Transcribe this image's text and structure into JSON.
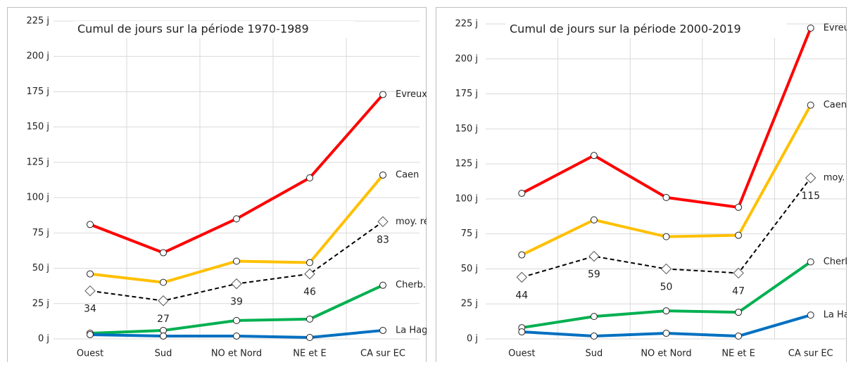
{
  "chart_data": [
    {
      "type": "line",
      "title": "Cumul de jours sur la période 1970-1989",
      "categories": [
        "Ouest",
        "Sud",
        "NO et Nord",
        "NE et E",
        "CA sur EC"
      ],
      "ylim": [
        0,
        225
      ],
      "yticks": [
        {
          "value": 0,
          "label": "0 j"
        },
        {
          "value": 25,
          "label": "25 j"
        },
        {
          "value": 50,
          "label": "50 j"
        },
        {
          "value": 75,
          "label": "75 j"
        },
        {
          "value": 100,
          "label": "100 j"
        },
        {
          "value": 125,
          "label": "125 j"
        },
        {
          "value": 150,
          "label": "150 j"
        },
        {
          "value": 175,
          "label": "175 j"
        },
        {
          "value": 200,
          "label": "200 j"
        },
        {
          "value": 225,
          "label": "225 j"
        }
      ],
      "grid": true,
      "series": [
        {
          "name": "Evreux",
          "color": "#ff0000",
          "values": [
            81,
            61,
            85,
            114,
            173
          ],
          "marker": "circle"
        },
        {
          "name": "Caen",
          "color": "#ffc000",
          "values": [
            46,
            40,
            55,
            54,
            116
          ],
          "marker": "circle"
        },
        {
          "name": "moy. régio.",
          "color": "#000000",
          "values": [
            34,
            27,
            39,
            46,
            83
          ],
          "marker": "diamond",
          "dashed": true,
          "labels": true
        },
        {
          "name": "Cherb.",
          "color": "#00b050",
          "values": [
            4,
            6,
            13,
            14,
            38
          ],
          "marker": "circle"
        },
        {
          "name": "La Hag.",
          "color": "#0070c0",
          "values": [
            3,
            2,
            2,
            1,
            6
          ],
          "marker": "circle"
        }
      ]
    },
    {
      "type": "line",
      "title": "Cumul de jours sur la période 2000-2019",
      "categories": [
        "Ouest",
        "Sud",
        "NO et Nord",
        "NE et E",
        "CA sur EC"
      ],
      "ylim": [
        0,
        225
      ],
      "yticks": [
        {
          "value": 0,
          "label": "0 j"
        },
        {
          "value": 25,
          "label": "25 j"
        },
        {
          "value": 50,
          "label": "50 j"
        },
        {
          "value": 75,
          "label": "75 j"
        },
        {
          "value": 100,
          "label": "100 j"
        },
        {
          "value": 125,
          "label": "125 j"
        },
        {
          "value": 150,
          "label": "150 j"
        },
        {
          "value": 175,
          "label": "175 j"
        },
        {
          "value": 200,
          "label": "200 j"
        },
        {
          "value": 225,
          "label": "225 j"
        }
      ],
      "grid": true,
      "series": [
        {
          "name": "Evreux",
          "color": "#ff0000",
          "values": [
            104,
            131,
            101,
            94,
            222
          ],
          "marker": "circle"
        },
        {
          "name": "Caen",
          "color": "#ffc000",
          "values": [
            60,
            85,
            73,
            74,
            167
          ],
          "marker": "circle"
        },
        {
          "name": "moy. régio.",
          "color": "#000000",
          "values": [
            44,
            59,
            50,
            47,
            115
          ],
          "marker": "diamond",
          "dashed": true,
          "labels": true
        },
        {
          "name": "Cherb.",
          "color": "#00b050",
          "values": [
            8,
            16,
            20,
            19,
            55
          ],
          "marker": "circle"
        },
        {
          "name": "La Hag.",
          "color": "#0070c0",
          "values": [
            5,
            2,
            4,
            2,
            17
          ],
          "marker": "circle"
        }
      ]
    }
  ]
}
